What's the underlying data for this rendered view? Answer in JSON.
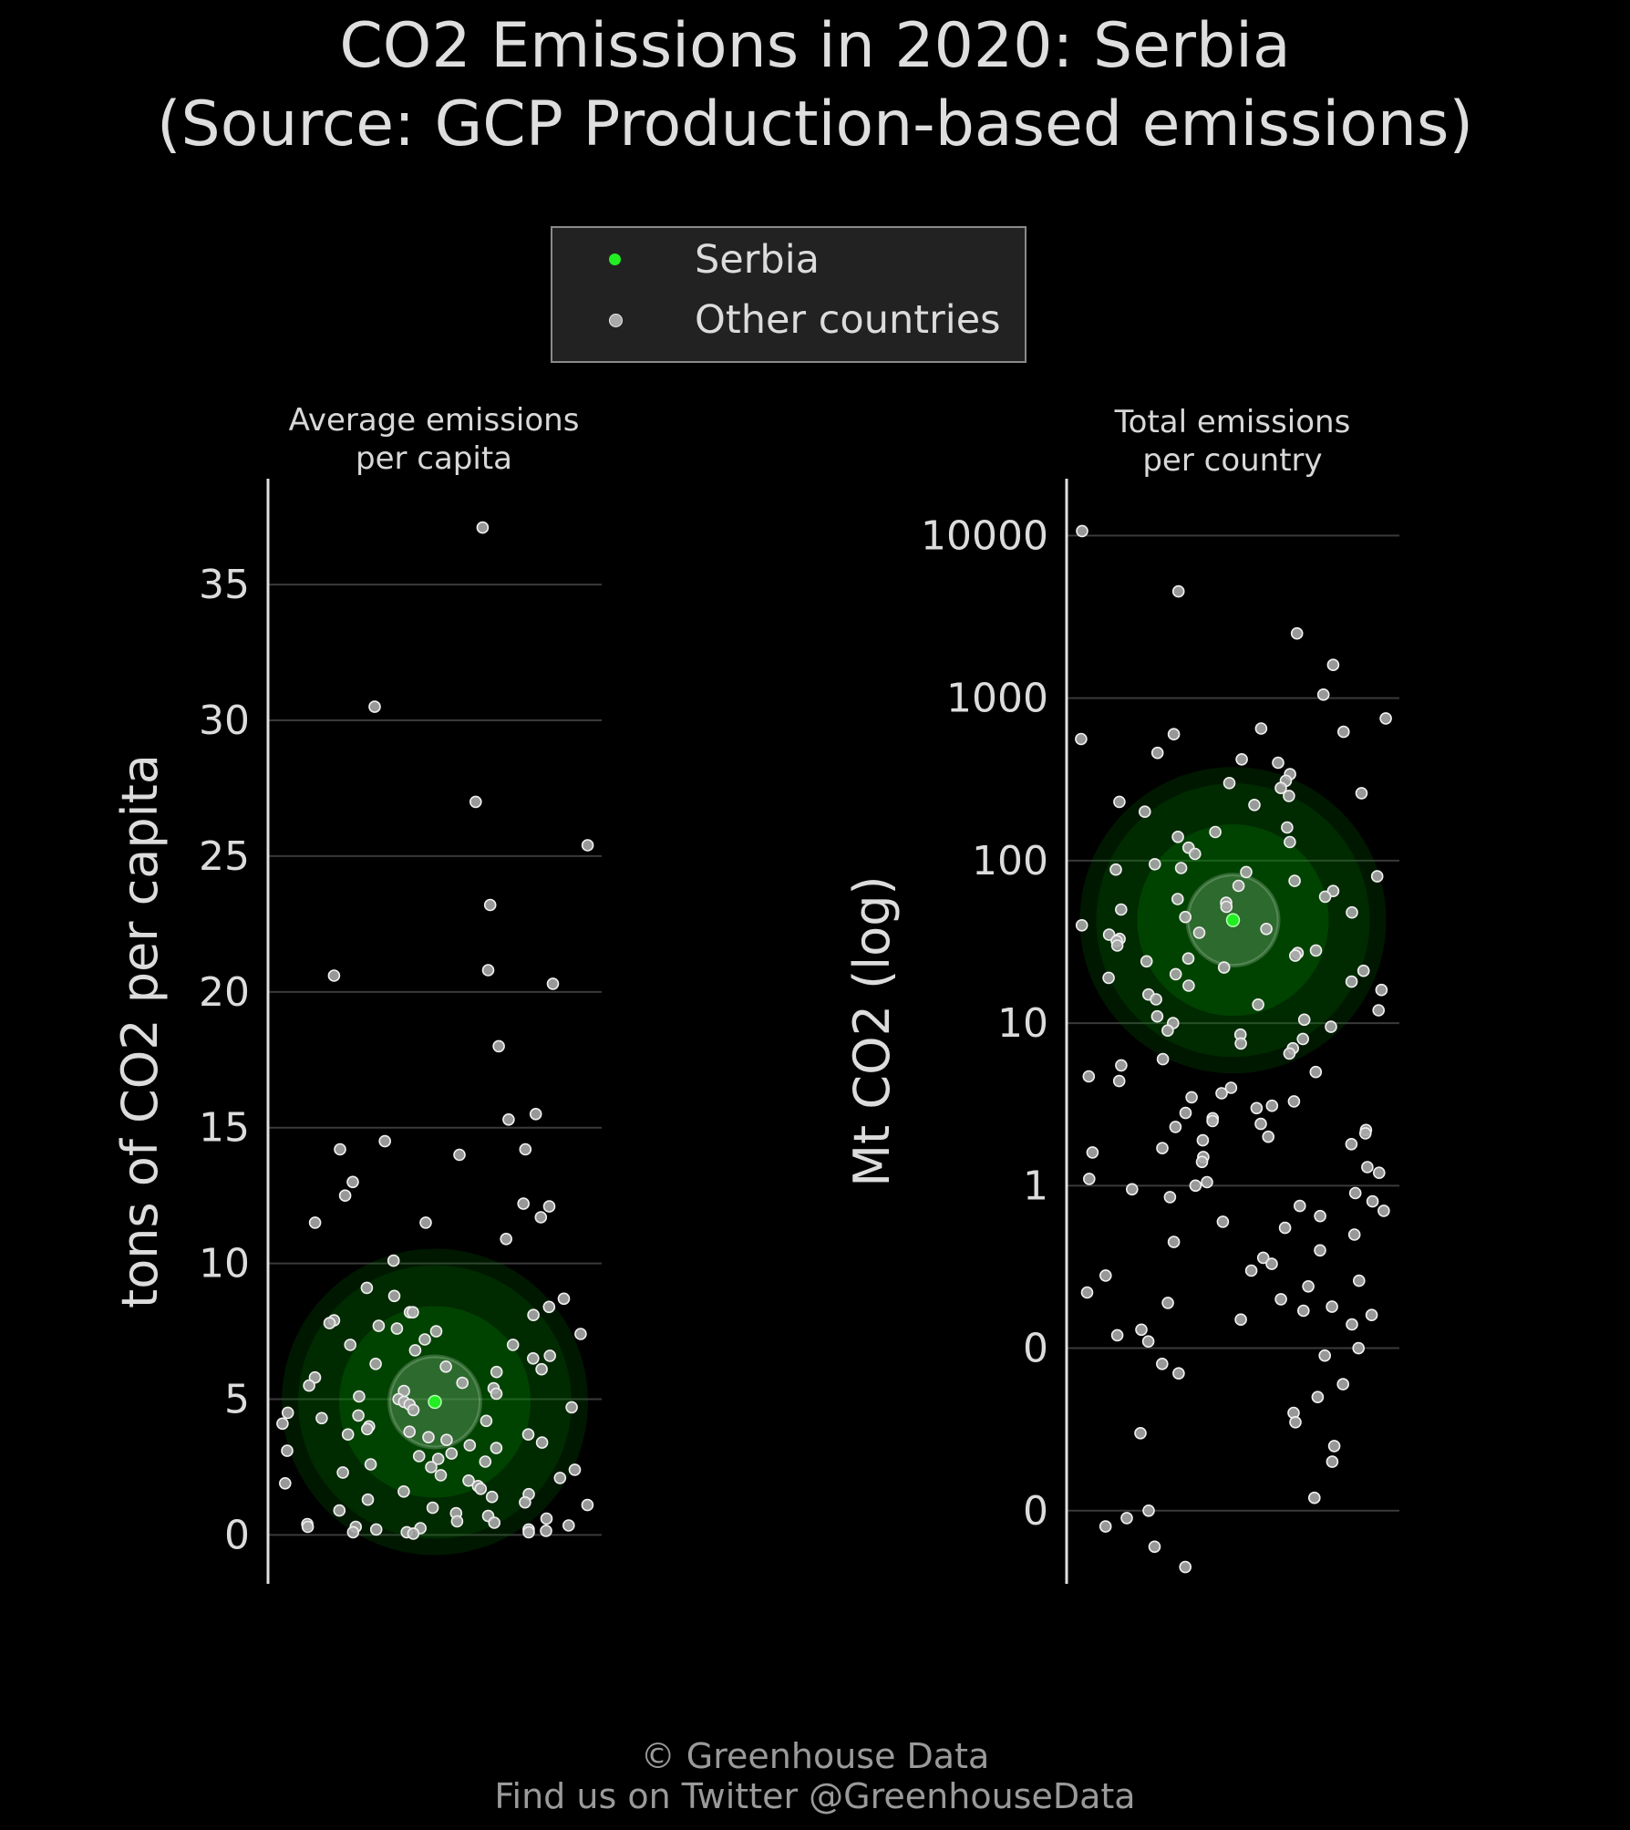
{
  "header": {
    "title_line1": "CO2 Emissions in 2020: Serbia",
    "title_line2": "(Source: GCP Production-based emissions)"
  },
  "legend": {
    "items": [
      {
        "label": "Serbia",
        "color": "#22ee22"
      },
      {
        "label": "Other countries",
        "color": "#a9a9a9"
      }
    ]
  },
  "footer": {
    "line1": "© Greenhouse Data",
    "line2": "Find us on Twitter @GreenhouseData"
  },
  "colors": {
    "background": "#000000",
    "highlight": "#22ee22",
    "points": "#b5b5b5",
    "grid": "#3a3a3a"
  },
  "chart_data": [
    {
      "type": "scatter",
      "title": "Average emissions\nper capita",
      "title_lines": [
        "Average emissions",
        "per capita"
      ],
      "ylabel": "tons of CO2 per capita",
      "yscale": "linear",
      "ylim": [
        -1.8,
        38.9
      ],
      "yticks": [
        0,
        5,
        10,
        15,
        20,
        25,
        30,
        35
      ],
      "ytick_labels": [
        "0",
        "5",
        "10",
        "15",
        "20",
        "25",
        "30",
        "35"
      ],
      "highlight": {
        "name": "Serbia",
        "y": 4.9
      },
      "others_y": [
        37.1,
        30.5,
        27.0,
        25.4,
        23.2,
        20.8,
        20.6,
        20.3,
        18.0,
        15.5,
        15.3,
        14.5,
        14.2,
        14.2,
        14.0,
        13.0,
        12.5,
        12.2,
        12.1,
        11.7,
        11.5,
        11.5,
        10.9,
        10.1,
        9.1,
        8.8,
        8.7,
        8.4,
        8.2,
        8.2,
        8.1,
        7.9,
        7.8,
        7.7,
        7.6,
        7.5,
        7.4,
        7.2,
        7.0,
        7.0,
        6.8,
        6.6,
        6.5,
        6.3,
        6.2,
        6.1,
        6.0,
        5.8,
        5.6,
        5.5,
        5.4,
        5.3,
        5.2,
        5.1,
        5.0,
        4.9,
        4.8,
        4.7,
        4.6,
        4.5,
        4.4,
        4.3,
        4.2,
        4.1,
        4.0,
        3.9,
        3.8,
        3.7,
        3.7,
        3.6,
        3.5,
        3.4,
        3.3,
        3.2,
        3.1,
        3.0,
        2.9,
        2.8,
        2.7,
        2.6,
        2.5,
        2.4,
        2.3,
        2.2,
        2.1,
        2.0,
        1.9,
        1.8,
        1.7,
        1.6,
        1.5,
        1.4,
        1.3,
        1.2,
        1.1,
        1.0,
        0.9,
        0.8,
        0.7,
        0.6,
        0.5,
        0.45,
        0.4,
        0.35,
        0.3,
        0.3,
        0.25,
        0.2,
        0.2,
        0.15,
        0.1,
        0.1,
        0.1,
        0.05
      ]
    },
    {
      "type": "scatter",
      "title": "Total emissions\nper country",
      "title_lines": [
        "Total emissions",
        "per country"
      ],
      "ylabel": "Mt CO2 (log)",
      "yscale": "log",
      "ylim_log10": [
        -2.45,
        4.35
      ],
      "yticks": [
        0.01,
        0.1,
        1,
        10,
        100,
        1000,
        10000
      ],
      "ytick_labels": [
        "0",
        "0",
        "1",
        "10",
        "100",
        "1000",
        "10000"
      ],
      "highlight": {
        "name": "Serbia",
        "y": 43
      },
      "others_y": [
        10668,
        4535,
        2500,
        1600,
        1050,
        750,
        650,
        620,
        600,
        560,
        460,
        420,
        400,
        340,
        310,
        300,
        280,
        260,
        250,
        230,
        220,
        200,
        160,
        150,
        140,
        130,
        120,
        110,
        95,
        90,
        88,
        85,
        80,
        75,
        70,
        65,
        60,
        58,
        55,
        52,
        50,
        48,
        45,
        40,
        38,
        36,
        35,
        33,
        32,
        30,
        28,
        27,
        26,
        25,
        24,
        22,
        21,
        20,
        19,
        18,
        17,
        16,
        15,
        14,
        13,
        12,
        11,
        10.5,
        10,
        9.5,
        9,
        8.5,
        8,
        7.5,
        7,
        6.5,
        6,
        5.5,
        5,
        4.7,
        4.4,
        4,
        3.7,
        3.5,
        3.3,
        3.1,
        3,
        2.8,
        2.6,
        2.5,
        2.4,
        2.3,
        2.2,
        2.1,
        2,
        1.9,
        1.8,
        1.7,
        1.6,
        1.5,
        1.4,
        1.3,
        1.2,
        1.1,
        1.05,
        1,
        0.95,
        0.9,
        0.85,
        0.8,
        0.75,
        0.7,
        0.65,
        0.6,
        0.55,
        0.5,
        0.45,
        0.4,
        0.36,
        0.33,
        0.3,
        0.28,
        0.26,
        0.24,
        0.22,
        0.2,
        0.19,
        0.18,
        0.17,
        0.16,
        0.15,
        0.14,
        0.13,
        0.12,
        0.11,
        0.1,
        0.09,
        0.08,
        0.07,
        0.06,
        0.05,
        0.04,
        0.035,
        0.03,
        0.025,
        0.02,
        0.012,
        0.01,
        0.009,
        0.008,
        0.006,
        0.0045
      ]
    }
  ]
}
